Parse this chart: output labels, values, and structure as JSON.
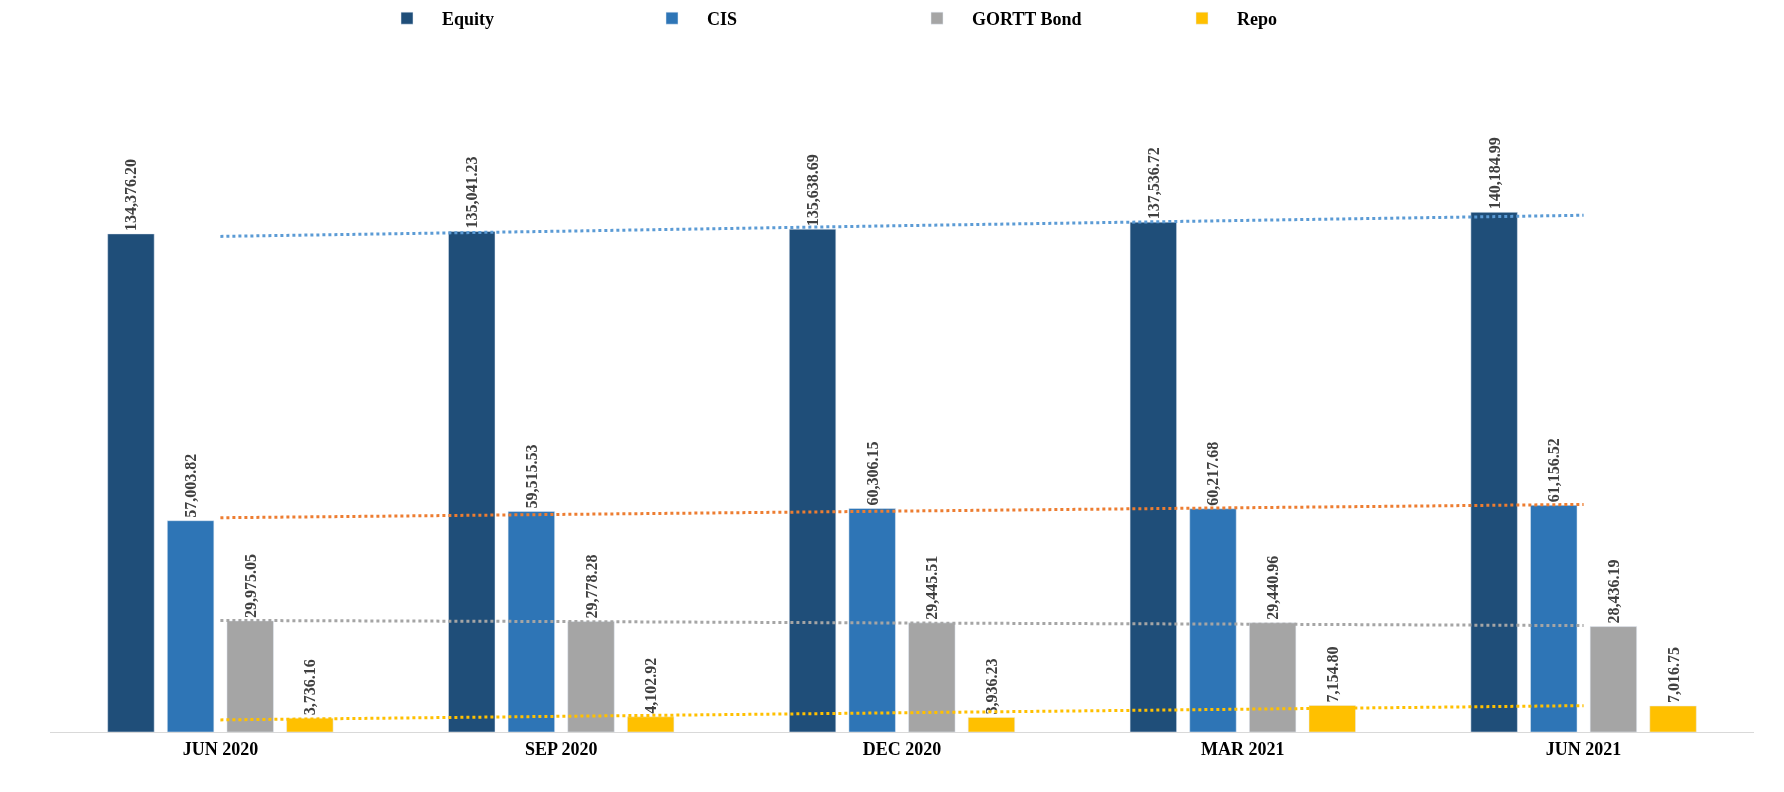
{
  "chart_data": {
    "type": "bar",
    "categories": [
      "JUN 2020",
      "SEP 2020",
      "DEC 2020",
      "MAR 2021",
      "JUN 2021"
    ],
    "series": [
      {
        "name": "Equity",
        "color": "#1f4e79",
        "values": [
          134376.2,
          135041.23,
          135638.69,
          137536.72,
          140184.99
        ],
        "value_labels": [
          "134,376.20",
          "135,041.23",
          "135,638.69",
          "137,536.72",
          "140,184.99"
        ]
      },
      {
        "name": "CIS",
        "color": "#2e75b6",
        "values": [
          57003.82,
          59515.53,
          60306.15,
          60217.68,
          61156.52
        ],
        "value_labels": [
          "57,003.82",
          "59,515.53",
          "60,306.15",
          "60,217.68",
          "61,156.52"
        ]
      },
      {
        "name": "GORTT Bond",
        "color": "#a5a5a5",
        "values": [
          29975.05,
          29778.28,
          29445.51,
          29440.96,
          28436.19
        ],
        "value_labels": [
          "29,975.05",
          "29,778.28",
          "29,445.51",
          "29,440.96",
          "28,436.19"
        ]
      },
      {
        "name": "Repo",
        "color": "#ffc000",
        "values": [
          3736.16,
          4102.92,
          3936.23,
          7154.8,
          7016.75
        ],
        "value_labels": [
          "3,736.16",
          "4,102.92",
          "3,936.23",
          "7,154.80",
          "7,016.75"
        ]
      },
      {
        "type": "line",
        "color": "#5b9bd5",
        "line_style": "dotted",
        "values": [
          133700,
          135100,
          136600,
          138000,
          139400
        ]
      },
      {
        "type": "line",
        "color": "#ed7d31",
        "line_style": "dotted",
        "values": [
          57800,
          58700,
          59600,
          60500,
          61400
        ]
      },
      {
        "type": "line",
        "color": "#a5a5a5",
        "line_style": "dotted",
        "values": [
          30100,
          29800,
          29400,
          29100,
          28700
        ]
      },
      {
        "type": "line",
        "color": "#ffc000",
        "line_style": "dotted",
        "values": [
          3270,
          4230,
          5190,
          6150,
          7110
        ]
      }
    ],
    "legend": "top",
    "tick_labels": "x"
  }
}
